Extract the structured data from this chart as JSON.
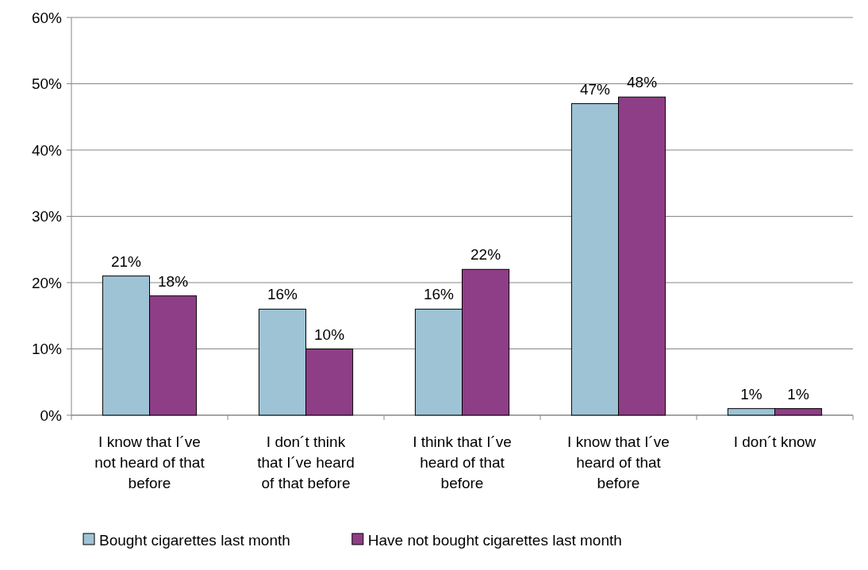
{
  "chart_data": {
    "type": "bar",
    "categories": [
      "I know that I´ve not heard of that before",
      "I don´t think that I´ve heard of that before",
      "I think that I´ve heard of that before",
      "I know that I´ve heard of that before",
      "I don´t know"
    ],
    "series": [
      {
        "name": "Bought cigarettes last month",
        "color": "#9dc3d5",
        "values": [
          21,
          16,
          16,
          47,
          1
        ],
        "value_labels": [
          "21%",
          "16%",
          "16%",
          "47%",
          "1%"
        ]
      },
      {
        "name": "Have not bought cigarettes last month",
        "color": "#8e3e86",
        "values": [
          18,
          10,
          22,
          48,
          1
        ],
        "value_labels": [
          "18%",
          "10%",
          "22%",
          "48%",
          "1%"
        ]
      }
    ],
    "ylim": [
      0,
      60
    ],
    "yticks": [
      {
        "value": 0,
        "label": "0%"
      },
      {
        "value": 10,
        "label": "10%"
      },
      {
        "value": 20,
        "label": "20%"
      },
      {
        "value": 30,
        "label": "30%"
      },
      {
        "value": 40,
        "label": "40%"
      },
      {
        "value": 50,
        "label": "50%"
      },
      {
        "value": 60,
        "label": "60%"
      }
    ],
    "grid": "y",
    "legend": "bottom"
  }
}
